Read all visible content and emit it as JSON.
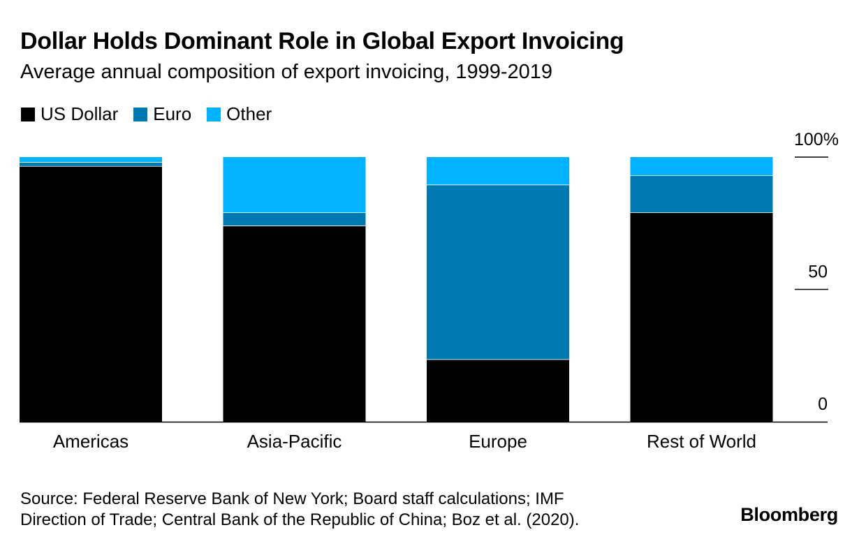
{
  "header": {
    "title": "Dollar Holds Dominant Role in Global Export Invoicing",
    "subtitle": "Average annual composition of export invoicing, 1999-2019"
  },
  "footer": {
    "source_line1": "Source: Federal Reserve Bank of New York; Board staff calculations; IMF",
    "source_line2": "Direction of Trade; Central Bank of the Republic of China; Boz et al. (2020).",
    "logo": "Bloomberg"
  },
  "chart_data": {
    "type": "bar",
    "stacked": true,
    "categories": [
      "Americas",
      "Asia-Pacific",
      "Europe",
      "Rest of World"
    ],
    "series": [
      {
        "name": "US Dollar",
        "color": "#000000",
        "values": [
          96.5,
          74,
          23.5,
          79
        ]
      },
      {
        "name": "Euro",
        "color": "#0079b2",
        "values": [
          1.5,
          5,
          66,
          14
        ]
      },
      {
        "name": "Other",
        "color": "#00b2ff",
        "values": [
          2,
          21,
          10.5,
          7
        ]
      }
    ],
    "ylim": [
      0,
      100
    ],
    "yticks": [
      {
        "value": 0,
        "label": "0"
      },
      {
        "value": 50,
        "label": "50"
      },
      {
        "value": 100,
        "label": "100%"
      }
    ],
    "legend_position": "top-left",
    "grid": false
  }
}
